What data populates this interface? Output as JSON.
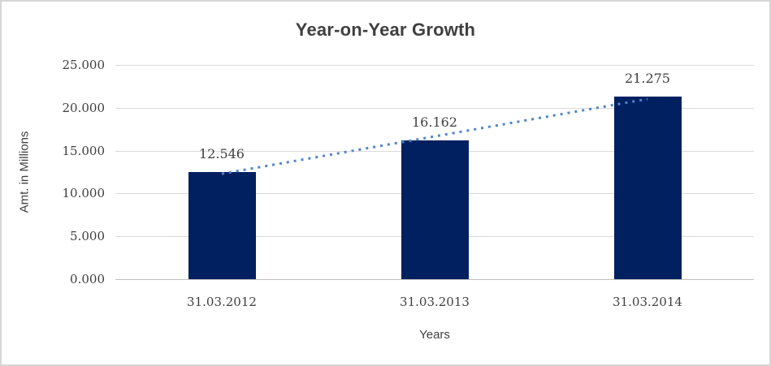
{
  "chart_data": {
    "type": "bar",
    "title": "Year-on-Year Growth",
    "xlabel": "Years",
    "ylabel": "Amt. in Millions",
    "categories": [
      "31.03.2012",
      "31.03.2013",
      "31.03.2014"
    ],
    "values": [
      12.546,
      16.162,
      21.275
    ],
    "value_labels": [
      "12.546",
      "16.162",
      "21.275"
    ],
    "y_ticks": [
      0,
      5,
      10,
      15,
      20,
      25
    ],
    "y_tick_labels": [
      "0.000",
      "5.000",
      "10.000",
      "15.000",
      "20.000",
      "25.000"
    ],
    "ylim": [
      0,
      25
    ],
    "grid": true,
    "legend": false,
    "trendline": {
      "type": "linear",
      "style": "dotted"
    },
    "colors": {
      "bar": "#002060",
      "trendline": "#4e86c8",
      "gridline": "#d9d9d9",
      "axis_line": "#bfbfbf",
      "text": "#3f3f3f"
    }
  }
}
